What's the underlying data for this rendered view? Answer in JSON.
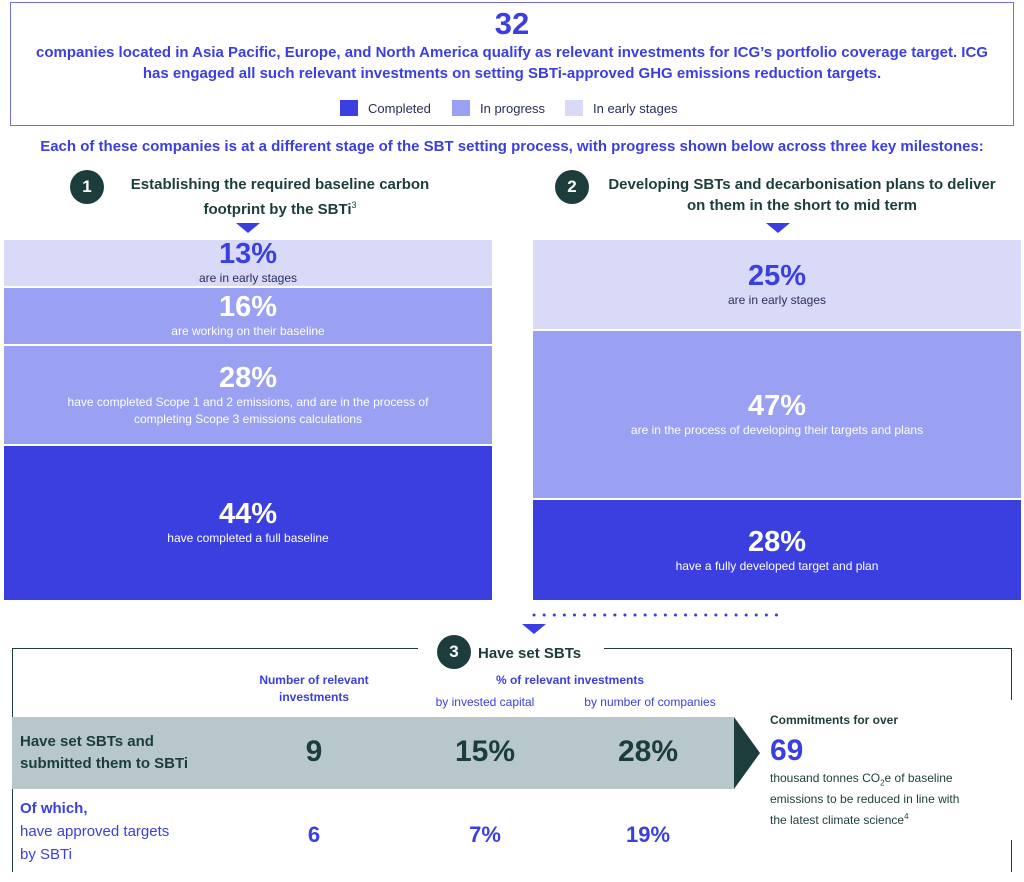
{
  "header": {
    "count": "32",
    "intro": "companies located in Asia Pacific, Europe, and North America qualify as relevant investments for ICG’s portfolio coverage target. ICG has engaged all such relevant investments on setting SBTi-approved GHG emissions reduction targets.",
    "legend": [
      {
        "label": "Completed",
        "color": "#3b3fe0"
      },
      {
        "label": "In progress",
        "color": "#9aa0f2"
      },
      {
        "label": "In early stages",
        "color": "#d8daf8"
      }
    ]
  },
  "subheading": "Each of these companies is at a different stage of the SBT setting process, with progress shown below across three key milestones:",
  "milestone1": {
    "number": "1",
    "title_line1": "Establishing the required baseline carbon",
    "title_line2": "footprint by the SBTi",
    "footnote": "3"
  },
  "milestone2": {
    "number": "2",
    "title_line1": "Developing SBTs and decarbonisation plans to deliver",
    "title_line2": "on them in the short to mid term"
  },
  "milestone3": {
    "number": "3",
    "title": "Have set SBTs"
  },
  "chart_data": [
    {
      "type": "bar",
      "stacked": true,
      "unit": "%",
      "segments": [
        {
          "value": 13,
          "label": "13%",
          "desc": "are in early stages",
          "stage": "In early stages"
        },
        {
          "value": 16,
          "label": "16%",
          "desc": "are working on their baseline",
          "stage": "In progress"
        },
        {
          "value": 28,
          "label": "28%",
          "desc": "have completed Scope 1 and 2 emissions, and are in the process of completing Scope 3 emissions calculations",
          "stage": "In progress"
        },
        {
          "value": 44,
          "label": "44%",
          "desc": "have completed a full baseline",
          "stage": "Completed"
        }
      ]
    },
    {
      "type": "bar",
      "stacked": true,
      "unit": "%",
      "segments": [
        {
          "value": 25,
          "label": "25%",
          "desc": "are in early stages",
          "stage": "In early stages"
        },
        {
          "value": 47,
          "label": "47%",
          "desc": "are in the process of developing their targets and plans",
          "stage": "In progress"
        },
        {
          "value": 28,
          "label": "28%",
          "desc": "have a fully developed target and plan",
          "stage": "Completed"
        }
      ]
    }
  ],
  "table": {
    "col_number": "Number of relevant investments",
    "col_pct": "% of relevant investments",
    "col_capital": "by invested capital",
    "col_companies": "by number of companies",
    "rows": [
      {
        "label_line1": "Have set SBTs and",
        "label_line2": "submitted them to SBTi",
        "number": "9",
        "capital": "15%",
        "companies": "28%"
      },
      {
        "label_line1": "Of which,",
        "label_line2": "have approved targets",
        "label_line3": "by SBTi",
        "number": "6",
        "capital": "7%",
        "companies": "19%"
      }
    ]
  },
  "commitment": {
    "title": "Commitments for over",
    "value": "69",
    "text_line1_pre": "thousand tonnes CO",
    "text_sub": "2",
    "text_line1_post": "e of baseline",
    "text_line2": "emissions to be reduced in line with",
    "text_line3": "the latest climate science",
    "footnote": "4"
  },
  "colors": {
    "completed": "#3b3fe0",
    "in_progress": "#9aa0f2",
    "early": "#d8daf8",
    "dark_green": "#1c3d3b",
    "row_bg": "#b8c7c9"
  }
}
